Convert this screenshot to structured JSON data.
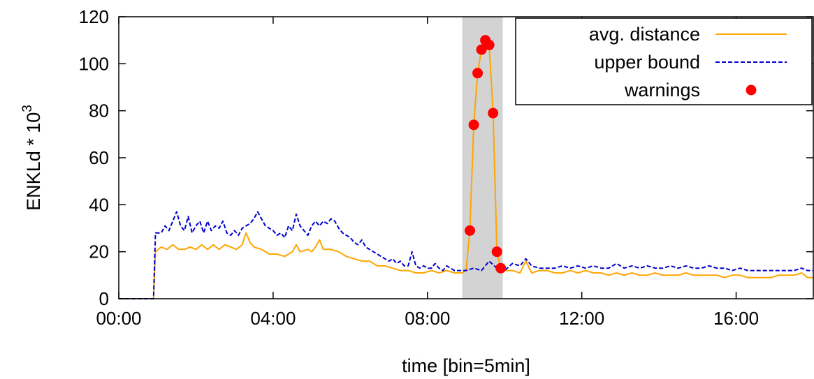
{
  "chart_data": {
    "type": "line",
    "xlabel": "time [bin=5min]",
    "ylabel_base": "ENKLd * 10",
    "ylabel_exp": "3",
    "xlim_hours": [
      0,
      18
    ],
    "ylim": [
      0,
      120
    ],
    "x_ticks": [
      {
        "value": 0,
        "label": "00:00"
      },
      {
        "value": 4,
        "label": "04:00"
      },
      {
        "value": 8,
        "label": "08:00"
      },
      {
        "value": 12,
        "label": "12:00"
      },
      {
        "value": 16,
        "label": "16:00"
      }
    ],
    "y_ticks": [
      0,
      20,
      40,
      60,
      80,
      100,
      120
    ],
    "grid": false,
    "legend_position": "top-right",
    "highlight_range_hours": [
      8.9,
      9.95
    ],
    "highlight_color": "#d3d3d3",
    "series": [
      {
        "name": "avg. distance",
        "style": "solid",
        "color": "#ffa500",
        "points": [
          [
            0,
            0
          ],
          [
            0.9,
            0
          ],
          [
            0.95,
            20
          ],
          [
            1.1,
            22
          ],
          [
            1.25,
            21
          ],
          [
            1.4,
            23
          ],
          [
            1.55,
            21
          ],
          [
            1.7,
            21
          ],
          [
            1.85,
            22
          ],
          [
            2.0,
            21
          ],
          [
            2.15,
            23
          ],
          [
            2.3,
            21
          ],
          [
            2.45,
            23
          ],
          [
            2.6,
            21
          ],
          [
            2.75,
            23
          ],
          [
            2.9,
            22
          ],
          [
            3.05,
            21
          ],
          [
            3.2,
            23
          ],
          [
            3.3,
            28
          ],
          [
            3.4,
            24
          ],
          [
            3.5,
            22
          ],
          [
            3.7,
            21
          ],
          [
            3.9,
            19
          ],
          [
            4.1,
            19
          ],
          [
            4.3,
            18
          ],
          [
            4.5,
            20
          ],
          [
            4.6,
            23
          ],
          [
            4.7,
            20
          ],
          [
            4.9,
            21
          ],
          [
            5.0,
            20
          ],
          [
            5.1,
            22
          ],
          [
            5.2,
            25
          ],
          [
            5.3,
            21
          ],
          [
            5.5,
            21
          ],
          [
            5.7,
            20
          ],
          [
            5.9,
            18
          ],
          [
            6.1,
            17
          ],
          [
            6.3,
            16
          ],
          [
            6.5,
            16
          ],
          [
            6.7,
            14
          ],
          [
            6.9,
            14
          ],
          [
            7.1,
            13
          ],
          [
            7.3,
            12
          ],
          [
            7.5,
            12
          ],
          [
            7.7,
            11
          ],
          [
            7.9,
            11
          ],
          [
            8.1,
            12
          ],
          [
            8.3,
            11
          ],
          [
            8.5,
            12
          ],
          [
            8.7,
            11
          ],
          [
            8.9,
            11
          ],
          [
            9.0,
            12
          ],
          [
            9.1,
            29
          ],
          [
            9.2,
            74
          ],
          [
            9.3,
            96
          ],
          [
            9.4,
            106
          ],
          [
            9.5,
            110
          ],
          [
            9.6,
            108
          ],
          [
            9.7,
            79
          ],
          [
            9.8,
            20
          ],
          [
            9.9,
            13
          ],
          [
            10.0,
            12
          ],
          [
            10.2,
            12
          ],
          [
            10.4,
            11
          ],
          [
            10.55,
            16
          ],
          [
            10.7,
            11
          ],
          [
            10.9,
            12
          ],
          [
            11.1,
            12
          ],
          [
            11.3,
            11
          ],
          [
            11.5,
            11
          ],
          [
            11.7,
            12
          ],
          [
            11.9,
            11
          ],
          [
            12.1,
            12
          ],
          [
            12.3,
            11
          ],
          [
            12.5,
            11
          ],
          [
            12.7,
            10
          ],
          [
            12.9,
            11
          ],
          [
            13.1,
            10
          ],
          [
            13.3,
            11
          ],
          [
            13.5,
            10
          ],
          [
            13.7,
            10
          ],
          [
            13.9,
            11
          ],
          [
            14.1,
            10
          ],
          [
            14.3,
            10
          ],
          [
            14.5,
            10
          ],
          [
            14.7,
            11
          ],
          [
            14.9,
            10
          ],
          [
            15.1,
            10
          ],
          [
            15.3,
            10
          ],
          [
            15.5,
            10
          ],
          [
            15.7,
            9
          ],
          [
            15.9,
            10
          ],
          [
            16.1,
            10
          ],
          [
            16.3,
            9
          ],
          [
            16.5,
            9
          ],
          [
            16.7,
            9
          ],
          [
            16.9,
            9
          ],
          [
            17.1,
            10
          ],
          [
            17.3,
            10
          ],
          [
            17.5,
            10
          ],
          [
            17.7,
            11
          ],
          [
            17.85,
            9
          ],
          [
            18.0,
            9
          ]
        ]
      },
      {
        "name": "upper bound",
        "style": "dashed",
        "color": "#0000cc",
        "points": [
          [
            0,
            0
          ],
          [
            0.9,
            0
          ],
          [
            0.95,
            28
          ],
          [
            1.1,
            28
          ],
          [
            1.2,
            31
          ],
          [
            1.3,
            29
          ],
          [
            1.4,
            33
          ],
          [
            1.5,
            37
          ],
          [
            1.6,
            31
          ],
          [
            1.7,
            29
          ],
          [
            1.8,
            35
          ],
          [
            1.9,
            28
          ],
          [
            2.0,
            31
          ],
          [
            2.1,
            33
          ],
          [
            2.2,
            28
          ],
          [
            2.3,
            33
          ],
          [
            2.4,
            29
          ],
          [
            2.5,
            31
          ],
          [
            2.6,
            30
          ],
          [
            2.7,
            33
          ],
          [
            2.8,
            28
          ],
          [
            2.9,
            27
          ],
          [
            3.0,
            29
          ],
          [
            3.1,
            27
          ],
          [
            3.2,
            30
          ],
          [
            3.3,
            31
          ],
          [
            3.4,
            32
          ],
          [
            3.5,
            34
          ],
          [
            3.6,
            37
          ],
          [
            3.7,
            34
          ],
          [
            3.8,
            31
          ],
          [
            3.9,
            30
          ],
          [
            4.0,
            29
          ],
          [
            4.1,
            27
          ],
          [
            4.2,
            28
          ],
          [
            4.3,
            26
          ],
          [
            4.4,
            31
          ],
          [
            4.5,
            29
          ],
          [
            4.6,
            36
          ],
          [
            4.7,
            31
          ],
          [
            4.8,
            29
          ],
          [
            4.9,
            27
          ],
          [
            5.0,
            31
          ],
          [
            5.1,
            33
          ],
          [
            5.2,
            31
          ],
          [
            5.3,
            33
          ],
          [
            5.4,
            32
          ],
          [
            5.5,
            34
          ],
          [
            5.6,
            33
          ],
          [
            5.7,
            30
          ],
          [
            5.8,
            28
          ],
          [
            5.9,
            27
          ],
          [
            6.0,
            26
          ],
          [
            6.1,
            24
          ],
          [
            6.2,
            23
          ],
          [
            6.3,
            25
          ],
          [
            6.4,
            22
          ],
          [
            6.5,
            21
          ],
          [
            6.6,
            20
          ],
          [
            6.7,
            19
          ],
          [
            6.8,
            18
          ],
          [
            6.9,
            17
          ],
          [
            7.0,
            16
          ],
          [
            7.1,
            17
          ],
          [
            7.2,
            15
          ],
          [
            7.3,
            16
          ],
          [
            7.4,
            14
          ],
          [
            7.5,
            14
          ],
          [
            7.6,
            20
          ],
          [
            7.7,
            14
          ],
          [
            7.8,
            13
          ],
          [
            7.9,
            14
          ],
          [
            8.0,
            13
          ],
          [
            8.1,
            13
          ],
          [
            8.2,
            15
          ],
          [
            8.3,
            13
          ],
          [
            8.4,
            12
          ],
          [
            8.5,
            14
          ],
          [
            8.6,
            13
          ],
          [
            8.7,
            12
          ],
          [
            8.8,
            12
          ],
          [
            9.0,
            12
          ],
          [
            9.2,
            13
          ],
          [
            9.4,
            12
          ],
          [
            9.6,
            16
          ],
          [
            9.8,
            13
          ],
          [
            10.0,
            12
          ],
          [
            10.2,
            15
          ],
          [
            10.4,
            14
          ],
          [
            10.55,
            17
          ],
          [
            10.7,
            14
          ],
          [
            10.9,
            13
          ],
          [
            11.1,
            13
          ],
          [
            11.3,
            13
          ],
          [
            11.5,
            14
          ],
          [
            11.7,
            13
          ],
          [
            11.9,
            14
          ],
          [
            12.1,
            13
          ],
          [
            12.3,
            14
          ],
          [
            12.5,
            13
          ],
          [
            12.7,
            13
          ],
          [
            12.9,
            15
          ],
          [
            13.1,
            13
          ],
          [
            13.3,
            14
          ],
          [
            13.5,
            13
          ],
          [
            13.7,
            14
          ],
          [
            13.9,
            13
          ],
          [
            14.1,
            13
          ],
          [
            14.3,
            14
          ],
          [
            14.5,
            13
          ],
          [
            14.7,
            14
          ],
          [
            14.9,
            13
          ],
          [
            15.1,
            13
          ],
          [
            15.3,
            14
          ],
          [
            15.5,
            13
          ],
          [
            15.7,
            13
          ],
          [
            15.9,
            12
          ],
          [
            16.1,
            13
          ],
          [
            16.3,
            12
          ],
          [
            16.5,
            12
          ],
          [
            16.7,
            12
          ],
          [
            16.9,
            12
          ],
          [
            17.1,
            12
          ],
          [
            17.3,
            12
          ],
          [
            17.5,
            12
          ],
          [
            17.7,
            13
          ],
          [
            17.85,
            12
          ],
          [
            18.0,
            12
          ]
        ]
      }
    ],
    "warnings": {
      "name": "warnings",
      "color": "#ff0000",
      "points": [
        [
          9.1,
          29
        ],
        [
          9.2,
          74
        ],
        [
          9.3,
          96
        ],
        [
          9.4,
          106
        ],
        [
          9.5,
          110
        ],
        [
          9.6,
          108
        ],
        [
          9.7,
          79
        ],
        [
          9.8,
          20
        ],
        [
          9.9,
          13
        ]
      ]
    }
  }
}
